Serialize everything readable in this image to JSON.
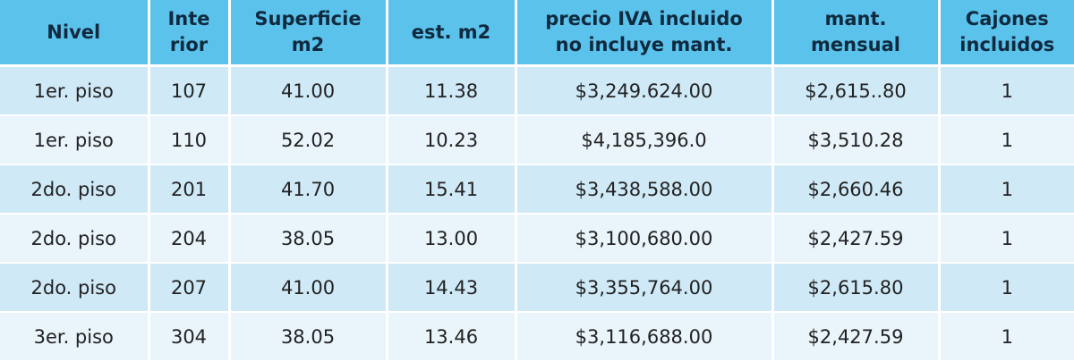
{
  "table": {
    "headers": [
      [
        "Nivel"
      ],
      [
        "Inte",
        "rior"
      ],
      [
        "Superficie",
        "m2"
      ],
      [
        "est. m2"
      ],
      [
        "precio IVA incluido",
        "no incluye mant."
      ],
      [
        "mant.",
        "mensual"
      ],
      [
        "Cajones",
        "incluidos"
      ]
    ],
    "rows": [
      [
        "1er. piso",
        "107",
        "41.00",
        "11.38",
        "$3,249.624.00",
        "$2,615..80",
        "1"
      ],
      [
        "1er. piso",
        "110",
        "52.02",
        "10.23",
        "$4,185,396.0",
        "$3,510.28",
        "1"
      ],
      [
        "2do. piso",
        "201",
        "41.70",
        "15.41",
        "$3,438,588.00",
        "$2,660.46",
        "1"
      ],
      [
        "2do. piso",
        "204",
        "38.05",
        "13.00",
        "$3,100,680.00",
        "$2,427.59",
        "1"
      ],
      [
        "2do. piso",
        "207",
        "41.00",
        "14.43",
        "$3,355,764.00",
        "$2,615.80",
        "1"
      ],
      [
        "3er. piso",
        "304",
        "38.05",
        "13.46",
        "$3,116,688.00",
        "$2,427.59",
        "1"
      ]
    ]
  },
  "colors": {
    "header_bg": "#5bc2ec",
    "row_odd_bg": "#cfe9f7",
    "row_even_bg": "#e9f4fb"
  }
}
